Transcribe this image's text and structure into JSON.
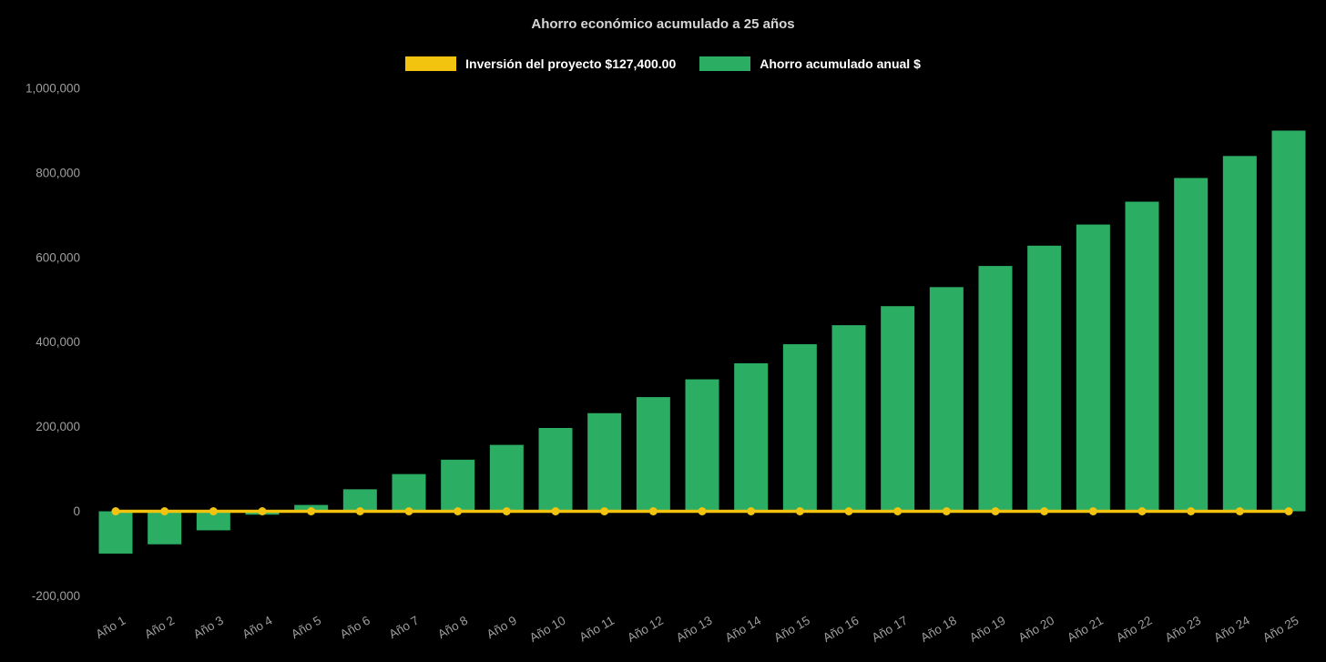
{
  "title": "Ahorro económico acumulado a 25 años",
  "legend": [
    {
      "label": "Inversión del proyecto $127,400.00",
      "color": "#f2c40f"
    },
    {
      "label": "Ahorro acumulado anual $",
      "color": "#2bad64"
    }
  ],
  "colors": {
    "background": "#000000",
    "axis_text": "#9e9e9e",
    "title_text": "#d6d6d6",
    "legend_text": "#ffffff"
  },
  "chart_data": {
    "type": "bar",
    "title": "Ahorro económico acumulado a 25 años",
    "xlabel": "",
    "ylabel": "",
    "ylim": [
      -200000,
      1000000
    ],
    "yticks": [
      -200000,
      0,
      200000,
      400000,
      600000,
      800000,
      1000000
    ],
    "grid": false,
    "legend_position": "top",
    "categories": [
      "Año 1",
      "Año 2",
      "Año 3",
      "Año 4",
      "Año 5",
      "Año 6",
      "Año 7",
      "Año 8",
      "Año 9",
      "Año 10",
      "Año 11",
      "Año 12",
      "Año 13",
      "Año 14",
      "Año 15",
      "Año 16",
      "Año 17",
      "Año 18",
      "Año 19",
      "Año 20",
      "Año 21",
      "Año 22",
      "Año 23",
      "Año 24",
      "Año 25"
    ],
    "series": [
      {
        "name": "Inversión del proyecto $127,400.00",
        "type": "line",
        "color": "#f2c40f",
        "values": [
          0,
          0,
          0,
          0,
          0,
          0,
          0,
          0,
          0,
          0,
          0,
          0,
          0,
          0,
          0,
          0,
          0,
          0,
          0,
          0,
          0,
          0,
          0,
          0,
          0
        ]
      },
      {
        "name": "Ahorro acumulado anual $",
        "type": "bar",
        "color": "#2bad64",
        "values": [
          -100000,
          -78000,
          -45000,
          -8000,
          15000,
          52000,
          88000,
          122000,
          157000,
          197000,
          232000,
          270000,
          312000,
          350000,
          395000,
          440000,
          485000,
          530000,
          580000,
          628000,
          678000,
          732000,
          788000,
          840000,
          900000
        ]
      }
    ]
  }
}
